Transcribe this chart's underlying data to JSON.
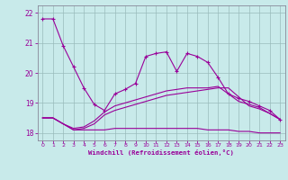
{
  "xlabel": "Windchill (Refroidissement éolien,°C)",
  "bg_color": "#c8eaea",
  "grid_color": "#aaccaa",
  "line_color": "#990099",
  "xlim": [
    -0.5,
    23.5
  ],
  "ylim": [
    17.75,
    22.25
  ],
  "yticks": [
    18,
    19,
    20,
    21,
    22
  ],
  "xticks": [
    0,
    1,
    2,
    3,
    4,
    5,
    6,
    7,
    8,
    9,
    10,
    11,
    12,
    13,
    14,
    15,
    16,
    17,
    18,
    19,
    20,
    21,
    22,
    23
  ],
  "curve1_x": [
    0,
    1,
    2,
    3,
    4,
    5,
    6,
    7,
    8,
    9,
    10,
    11,
    12,
    13,
    14,
    15,
    16,
    17,
    18,
    19,
    20,
    21,
    22,
    23
  ],
  "curve1_y": [
    21.8,
    21.8,
    20.9,
    20.2,
    19.5,
    18.95,
    18.75,
    19.3,
    19.45,
    19.65,
    20.55,
    20.65,
    20.7,
    20.05,
    20.65,
    20.55,
    20.35,
    19.85,
    19.3,
    19.15,
    19.05,
    18.9,
    18.75,
    18.45
  ],
  "curve2_x": [
    0,
    1,
    2,
    3,
    4,
    5,
    6,
    7,
    8,
    9,
    10,
    11,
    12,
    13,
    14,
    15,
    16,
    17,
    18,
    19,
    20,
    21,
    22,
    23
  ],
  "curve2_y": [
    18.5,
    18.5,
    18.3,
    18.1,
    18.1,
    18.1,
    18.1,
    18.15,
    18.15,
    18.15,
    18.15,
    18.15,
    18.15,
    18.15,
    18.15,
    18.15,
    18.1,
    18.1,
    18.1,
    18.05,
    18.05,
    18.0,
    18.0,
    18.0
  ],
  "curve3_x": [
    0,
    1,
    2,
    3,
    4,
    5,
    6,
    7,
    8,
    9,
    10,
    11,
    12,
    13,
    14,
    15,
    16,
    17,
    18,
    19,
    20,
    21,
    22,
    23
  ],
  "curve3_y": [
    18.5,
    18.5,
    18.3,
    18.1,
    18.15,
    18.3,
    18.6,
    18.75,
    18.85,
    18.95,
    19.05,
    19.15,
    19.25,
    19.3,
    19.35,
    19.4,
    19.45,
    19.5,
    19.5,
    19.2,
    18.9,
    18.8,
    18.65,
    18.45
  ],
  "curve4_x": [
    0,
    1,
    2,
    3,
    4,
    5,
    6,
    7,
    8,
    9,
    10,
    11,
    12,
    13,
    14,
    15,
    16,
    17,
    18,
    19,
    20,
    21,
    22,
    23
  ],
  "curve4_y": [
    18.5,
    18.5,
    18.3,
    18.15,
    18.2,
    18.4,
    18.7,
    18.9,
    19.0,
    19.1,
    19.2,
    19.3,
    19.4,
    19.45,
    19.5,
    19.5,
    19.5,
    19.55,
    19.3,
    19.05,
    18.95,
    18.85,
    18.65,
    18.45
  ]
}
